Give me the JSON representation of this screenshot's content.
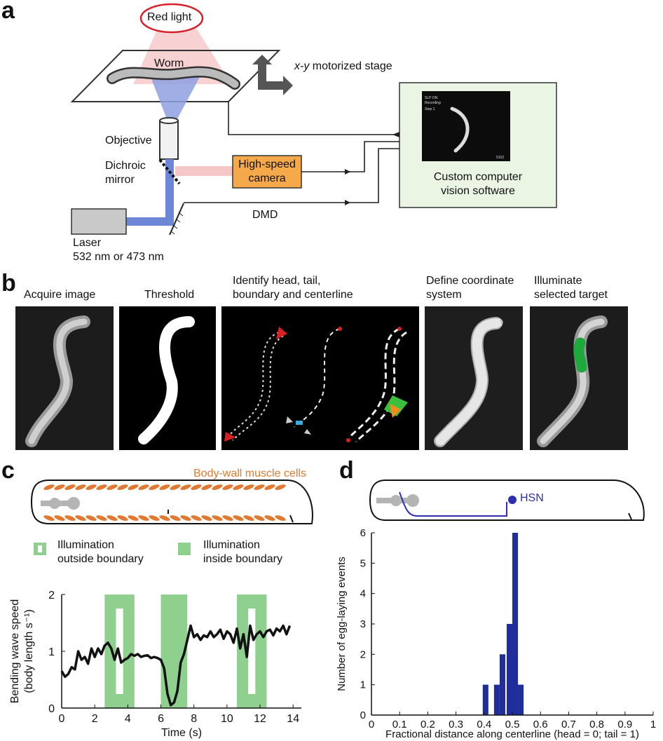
{
  "panel_a": {
    "letter": "a",
    "red_light": "Red light",
    "worm": "Worm",
    "stage_prefix": "x-y",
    "stage_suffix": " motorized stage",
    "objective": "Objective",
    "dichroic": [
      "Dichroic",
      "mirror"
    ],
    "camera": [
      "High-speed",
      "camera"
    ],
    "software": [
      "Custom computer",
      "vision software"
    ],
    "screen_text": [
      "SLP ON",
      "Recording",
      "Step 1"
    ],
    "screen_footer": "0102",
    "dmd": "DMD",
    "laser": [
      "Laser",
      "532 nm or 473 nm"
    ],
    "colors": {
      "red_light": "#d6202a",
      "camera_fill": "#f5a94a",
      "software_fill": "#eaf5e4",
      "laser_fill": "#c9c9c9",
      "beam_blue": "#6d86d6",
      "beam_red": "#f6c7c7"
    }
  },
  "panel_b": {
    "letter": "b",
    "steps": [
      "Acquire image",
      "Threshold",
      "Identify head, tail,",
      "boundary and centerline",
      "Define coordinate",
      "system",
      "Illuminate",
      "selected target"
    ]
  },
  "panel_c": {
    "letter": "c",
    "muscle_label": "Body-wall muscle cells",
    "legend": [
      {
        "lines": [
          "Illumination",
          "outside boundary"
        ],
        "style": "outline"
      },
      {
        "lines": [
          "Illumination",
          "inside boundary"
        ],
        "style": "filled"
      }
    ],
    "colors": {
      "muscle": "#e07a32",
      "green": "#8fd08f"
    },
    "chart_data": {
      "type": "line",
      "xlabel": "Time (s)",
      "ylabel": [
        "Bending wave speed",
        "(body length s⁻¹)"
      ],
      "xlim": [
        0,
        14.5
      ],
      "ylim": [
        0,
        2
      ],
      "xticks": [
        "0",
        "2",
        "4",
        "6",
        "8",
        "10",
        "12",
        "14"
      ],
      "yticks": [
        "0",
        "1",
        "2"
      ],
      "illumination": [
        {
          "start": 2.6,
          "end": 4.4,
          "type": "outside"
        },
        {
          "start": 6.0,
          "end": 7.6,
          "type": "inside"
        },
        {
          "start": 10.6,
          "end": 12.4,
          "type": "outside"
        }
      ],
      "series": [
        {
          "x": [
            0,
            0.2,
            0.4,
            0.6,
            0.8,
            1.0,
            1.2,
            1.4,
            1.6,
            1.8,
            2.0,
            2.2,
            2.4,
            2.6,
            2.8,
            3.0,
            3.2,
            3.4,
            3.6,
            3.8,
            4.0,
            4.2,
            4.4,
            4.6,
            4.8,
            5.0,
            5.2,
            5.4,
            5.6,
            5.8,
            6.0,
            6.2,
            6.4,
            6.6,
            6.8,
            7.0,
            7.2,
            7.4,
            7.6,
            7.8,
            8.0,
            8.2,
            8.4,
            8.6,
            8.8,
            9.0,
            9.2,
            9.4,
            9.6,
            9.8,
            10.0,
            10.2,
            10.4,
            10.6,
            10.8,
            11.0,
            11.2,
            11.4,
            11.6,
            11.8,
            12.0,
            12.2,
            12.4,
            12.6,
            12.8,
            13.0,
            13.2,
            13.4,
            13.6,
            13.8
          ],
          "y": [
            0.65,
            0.55,
            0.6,
            0.72,
            0.68,
            1.0,
            0.85,
            0.9,
            0.78,
            1.05,
            0.9,
            1.05,
            0.95,
            1.1,
            1.15,
            1.05,
            0.85,
            1.05,
            0.8,
            0.85,
            0.88,
            0.95,
            0.92,
            0.95,
            0.9,
            0.92,
            0.93,
            0.88,
            0.9,
            0.88,
            0.85,
            0.7,
            0.25,
            0.05,
            0.1,
            0.3,
            0.8,
            0.95,
            1.2,
            1.45,
            1.25,
            1.3,
            1.2,
            1.28,
            1.25,
            1.35,
            1.25,
            1.3,
            1.38,
            1.22,
            1.35,
            1.3,
            1.15,
            1.4,
            1.05,
            1.3,
            0.9,
            1.45,
            1.2,
            1.3,
            1.35,
            1.25,
            1.35,
            1.38,
            1.28,
            1.4,
            1.35,
            1.45,
            1.3,
            1.45
          ]
        }
      ]
    }
  },
  "panel_d": {
    "letter": "d",
    "hsn_label": "HSN",
    "colors": {
      "hsn": "#2e2eb0",
      "bars": "#1f2e9a"
    },
    "chart_data": {
      "type": "bar",
      "xlabel": "Fractional distance along centerline (head = 0; tail = 1)",
      "ylabel": "Number of egg-laying events",
      "xlim": [
        0,
        1
      ],
      "ylim": [
        0,
        6
      ],
      "xticks": [
        "0",
        "0.1",
        "0.2",
        "0.3",
        "0.4",
        "0.5",
        "0.6",
        "0.7",
        "0.8",
        "0.9",
        "1"
      ],
      "yticks": [
        "0",
        "1",
        "2",
        "3",
        "4",
        "5",
        "6"
      ],
      "bins": [
        {
          "x": 0.405,
          "value": 1
        },
        {
          "x": 0.445,
          "value": 1
        },
        {
          "x": 0.465,
          "value": 2
        },
        {
          "x": 0.49,
          "value": 3
        },
        {
          "x": 0.51,
          "value": 6
        },
        {
          "x": 0.53,
          "value": 1
        }
      ]
    }
  }
}
